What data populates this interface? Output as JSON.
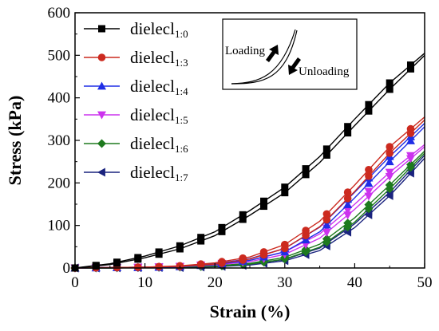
{
  "chart_data": {
    "type": "line",
    "title": "",
    "xlabel": "Strain (%)",
    "ylabel": "Stress (kPa)",
    "xlim": [
      0,
      50
    ],
    "ylim": [
      0,
      600
    ],
    "xticks": [
      0,
      10,
      20,
      30,
      40,
      50
    ],
    "yticks": [
      0,
      100,
      200,
      300,
      400,
      500,
      600
    ],
    "grid": false,
    "legend_position": "top-left",
    "inset": {
      "loading_label": "Loading",
      "unloading_label": "Unloading"
    },
    "series": [
      {
        "name": "dielecl",
        "subscript": "1:0",
        "color": "#000000",
        "marker": "square",
        "x": [
          0,
          5,
          10,
          15,
          20,
          25,
          30,
          35,
          40,
          45,
          50
        ],
        "loading": [
          0,
          10,
          28,
          52,
          85,
          135,
          190,
          262,
          350,
          435,
          505
        ],
        "unloading": [
          0,
          8,
          24,
          45,
          76,
          124,
          177,
          248,
          335,
          420,
          500
        ]
      },
      {
        "name": "dielecl",
        "subscript": "1:3",
        "color": "#cc2a1f",
        "marker": "circle",
        "x": [
          0,
          5,
          10,
          15,
          20,
          25,
          30,
          35,
          40,
          45,
          50
        ],
        "loading": [
          0,
          1,
          2,
          5,
          12,
          26,
          55,
          110,
          195,
          285,
          355
        ],
        "unloading": [
          0,
          1,
          2,
          4,
          9,
          21,
          46,
          97,
          180,
          270,
          348
        ]
      },
      {
        "name": "dielecl",
        "subscript": "1:4",
        "color": "#1f2ee6",
        "marker": "triangle-up",
        "x": [
          0,
          5,
          10,
          15,
          20,
          25,
          30,
          35,
          40,
          45,
          50
        ],
        "loading": [
          0,
          1,
          2,
          4,
          10,
          22,
          46,
          96,
          178,
          262,
          340
        ],
        "unloading": [
          0,
          1,
          1,
          3,
          8,
          18,
          38,
          85,
          165,
          250,
          332
        ]
      },
      {
        "name": "dielecl",
        "subscript": "1:5",
        "color": "#cc33ee",
        "marker": "triangle-down",
        "x": [
          0,
          5,
          10,
          15,
          20,
          25,
          30,
          35,
          40,
          45,
          50
        ],
        "loading": [
          0,
          1,
          2,
          4,
          9,
          18,
          38,
          80,
          150,
          225,
          290
        ],
        "unloading": [
          0,
          1,
          1,
          3,
          7,
          15,
          32,
          70,
          138,
          215,
          285
        ]
      },
      {
        "name": "dielecl",
        "subscript": "1:6",
        "color": "#1e7a1e",
        "marker": "diamond",
        "x": [
          0,
          5,
          10,
          15,
          20,
          25,
          30,
          35,
          40,
          45,
          50
        ],
        "loading": [
          0,
          1,
          1,
          2,
          5,
          11,
          25,
          56,
          118,
          195,
          275
        ],
        "unloading": [
          0,
          0,
          1,
          2,
          4,
          9,
          21,
          49,
          108,
          186,
          270
        ]
      },
      {
        "name": "dielecl",
        "subscript": "1:7",
        "color": "#1a237e",
        "marker": "triangle-left",
        "x": [
          0,
          5,
          10,
          15,
          20,
          25,
          30,
          35,
          40,
          45,
          50
        ],
        "loading": [
          0,
          1,
          1,
          2,
          4,
          9,
          20,
          47,
          104,
          178,
          265
        ],
        "unloading": [
          0,
          0,
          1,
          1,
          3,
          7,
          17,
          41,
          95,
          170,
          258
        ]
      }
    ]
  }
}
